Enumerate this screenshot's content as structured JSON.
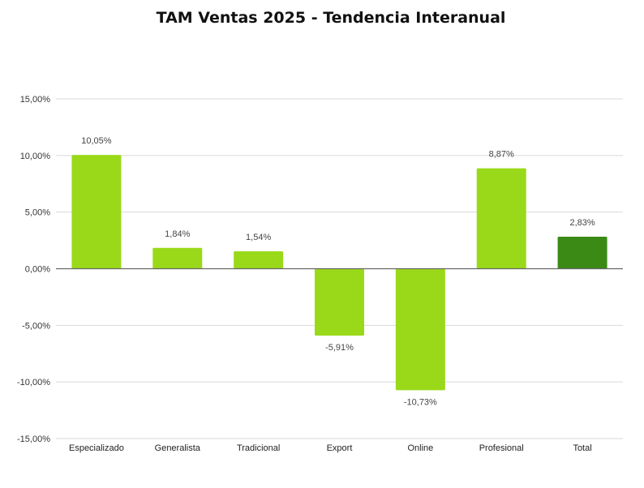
{
  "chart_data": {
    "type": "bar",
    "title": "TAM Ventas 2025 - Tendencia Interanual",
    "xlabel": "",
    "ylabel": "",
    "categories": [
      "Especializado",
      "Generalista",
      "Tradicional",
      "Export",
      "Online",
      "Profesional",
      "Total"
    ],
    "values": [
      10.05,
      1.84,
      1.54,
      -5.91,
      -10.73,
      8.87,
      2.83
    ],
    "data_labels": [
      "10,05%",
      "1,84%",
      "1,54%",
      "-5,91%",
      "-10,73%",
      "8,87%",
      "2,83%"
    ],
    "ylim": [
      -15,
      15
    ],
    "yticks": [
      15,
      10,
      5,
      0,
      -5,
      -10,
      -15
    ],
    "ytick_labels": [
      "15,00%",
      "10,00%",
      "5,00%",
      "0,00%",
      "-5,00%",
      "-10,00%",
      "-15,00%"
    ],
    "grid": true,
    "legend": "none",
    "colors": {
      "bar": "#9ad91a",
      "total_bar": "#3b8a16",
      "grid": "#d9d9d9",
      "zero_line": "#666666"
    }
  }
}
